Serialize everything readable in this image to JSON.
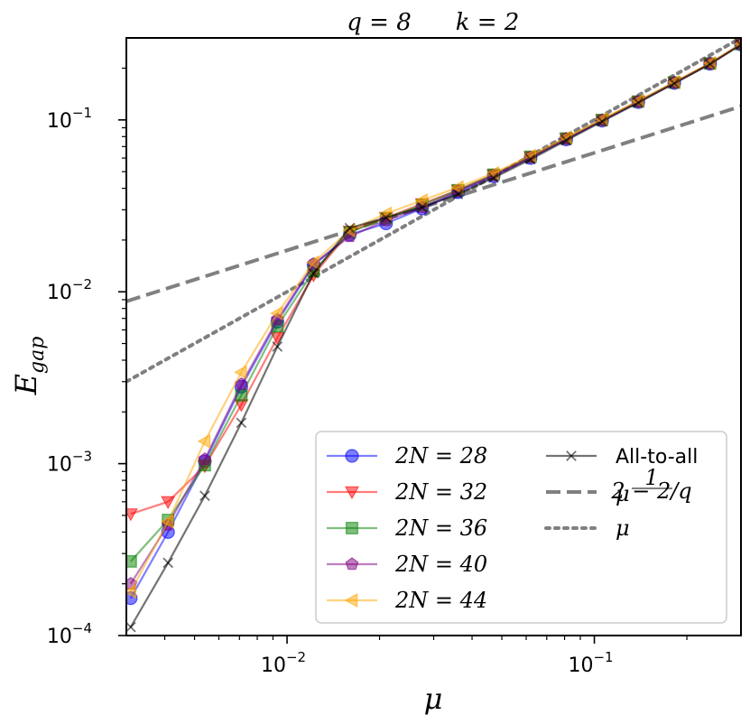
{
  "chart_data": {
    "type": "line",
    "title_parts": [
      "q = 8",
      "k = 2"
    ],
    "xlabel": "μ",
    "ylabel": "E",
    "ylabel_sub": "gap",
    "xscale": "log",
    "yscale": "log",
    "xlim": [
      0.003,
      0.3
    ],
    "ylim": [
      0.0001,
      0.3
    ],
    "x_ticks": [
      {
        "label_base": "10",
        "label_exp": "−2",
        "value": 0.01
      },
      {
        "label_base": "10",
        "label_exp": "−1",
        "value": 0.1
      }
    ],
    "y_ticks": [
      {
        "label_base": "10",
        "label_exp": "−4",
        "value": 0.0001
      },
      {
        "label_base": "10",
        "label_exp": "−3",
        "value": 0.001
      },
      {
        "label_base": "10",
        "label_exp": "−2",
        "value": 0.01
      },
      {
        "label_base": "10",
        "label_exp": "−1",
        "value": 0.1
      }
    ],
    "legend_position": "lower-right",
    "series": [
      {
        "name": "2N = 28",
        "color": "#0000ff",
        "marker": "circle",
        "x": [
          0.0031,
          0.0041,
          0.0054,
          0.0071,
          0.0093,
          0.0122,
          0.016,
          0.021,
          0.0275,
          0.036,
          0.047,
          0.062,
          0.081,
          0.106,
          0.139,
          0.182,
          0.238,
          0.3
        ],
        "y": [
          0.000165,
          0.0004,
          0.00103,
          0.0028,
          0.0067,
          0.0143,
          0.0215,
          0.025,
          0.0305,
          0.038,
          0.047,
          0.06,
          0.077,
          0.099,
          0.127,
          0.164,
          0.212,
          0.275
        ]
      },
      {
        "name": "2N = 32",
        "color": "#ff0000",
        "marker": "triangle-down",
        "x": [
          0.0031,
          0.0041,
          0.0054,
          0.0071,
          0.0093,
          0.0122,
          0.016,
          0.021,
          0.0275,
          0.036,
          0.047,
          0.062,
          0.081,
          0.106,
          0.139,
          0.182,
          0.238,
          0.3
        ],
        "y": [
          0.00051,
          0.0006,
          0.00097,
          0.0022,
          0.0054,
          0.0125,
          0.0225,
          0.027,
          0.0325,
          0.039,
          0.048,
          0.061,
          0.078,
          0.1,
          0.128,
          0.165,
          0.213,
          0.276
        ]
      },
      {
        "name": "2N = 36",
        "color": "#008000",
        "marker": "square",
        "x": [
          0.0031,
          0.0041,
          0.0054,
          0.0071,
          0.0093,
          0.0122,
          0.016,
          0.021,
          0.0275,
          0.036,
          0.047,
          0.062,
          0.081,
          0.106,
          0.139,
          0.182,
          0.238,
          0.3
        ],
        "y": [
          0.00027,
          0.00047,
          0.00098,
          0.0025,
          0.0063,
          0.0132,
          0.0222,
          0.0268,
          0.032,
          0.039,
          0.048,
          0.061,
          0.078,
          0.1,
          0.128,
          0.165,
          0.213,
          0.276
        ]
      },
      {
        "name": "2N = 40",
        "color": "#800080",
        "marker": "pentagon",
        "x": [
          0.0031,
          0.0041,
          0.0054,
          0.0071,
          0.0093,
          0.0122,
          0.016,
          0.021,
          0.0275,
          0.036,
          0.047,
          0.062,
          0.081,
          0.106,
          0.139,
          0.182,
          0.238,
          0.3
        ],
        "y": [
          0.0002,
          0.00044,
          0.00106,
          0.0029,
          0.0069,
          0.0145,
          0.021,
          0.026,
          0.031,
          0.0385,
          0.0475,
          0.0605,
          0.0775,
          0.0995,
          0.1275,
          0.1645,
          0.2125,
          0.2755
        ]
      },
      {
        "name": "2N = 44",
        "color": "#ffa500",
        "marker": "triangle-left",
        "x": [
          0.0031,
          0.0041,
          0.0054,
          0.0071,
          0.0093,
          0.0122,
          0.016,
          0.021,
          0.0275,
          0.036,
          0.047,
          0.062,
          0.081,
          0.106,
          0.139,
          0.182,
          0.238,
          0.3
        ],
        "y": [
          0.00018,
          0.00046,
          0.00135,
          0.0034,
          0.0075,
          0.0148,
          0.0228,
          0.0285,
          0.034,
          0.0405,
          0.049,
          0.062,
          0.079,
          0.101,
          0.129,
          0.166,
          0.214,
          0.277
        ]
      },
      {
        "name": "All-to-all",
        "color": "#000000",
        "marker": "x",
        "x": [
          0.0031,
          0.0041,
          0.0054,
          0.0071,
          0.0093,
          0.0122,
          0.016,
          0.021,
          0.0275,
          0.036,
          0.047,
          0.062,
          0.081,
          0.106,
          0.139,
          0.182,
          0.238,
          0.3
        ],
        "y": [
          0.000112,
          0.000265,
          0.00065,
          0.00173,
          0.0048,
          0.0128,
          0.0235,
          0.027,
          0.031,
          0.037,
          0.046,
          0.059,
          0.076,
          0.098,
          0.126,
          0.163,
          0.211,
          0.274
        ]
      }
    ],
    "reference_lines": [
      {
        "name": "μ^(1/(2−2/q))",
        "label_base": "μ",
        "label_exp_num": "1",
        "label_exp_den": "2 − 2/q",
        "color": "#808080",
        "style": "dashed",
        "x": [
          0.003,
          0.3
        ],
        "y": [
          0.0088,
          0.12
        ]
      },
      {
        "name": "μ",
        "label_base": "μ",
        "color": "#808080",
        "style": "dotted",
        "x": [
          0.003,
          0.3
        ],
        "y": [
          0.003,
          0.3
        ]
      }
    ]
  }
}
